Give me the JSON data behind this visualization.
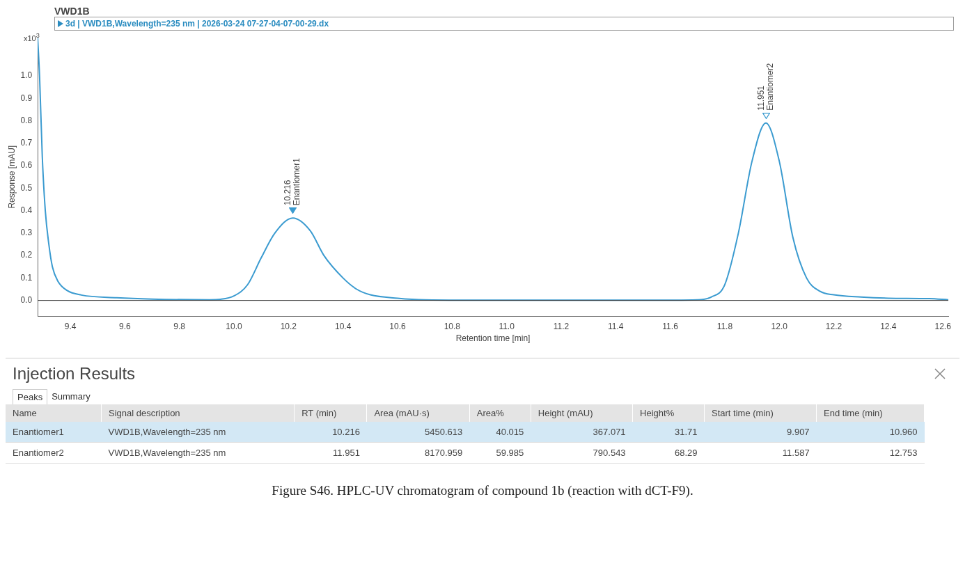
{
  "chart_data": {
    "type": "line",
    "title": "VWD1B",
    "subtitle": "3d | VWD1B,Wavelength=235 nm | 2026-03-24 07-27-04-07-00-29.dx",
    "xlabel": "Retention time [min]",
    "ylabel": "Response [mAU]",
    "x": [
      9.28,
      9.287,
      9.297,
      9.308,
      9.321,
      9.334,
      9.355,
      9.387,
      9.44,
      9.57,
      9.7,
      9.91,
      9.95,
      10.0,
      10.05,
      10.1,
      10.15,
      10.216,
      10.28,
      10.33,
      10.4,
      10.45,
      10.5,
      10.6,
      10.7,
      11.0,
      11.5,
      11.7,
      11.75,
      11.8,
      11.85,
      11.9,
      11.951,
      12.0,
      12.05,
      12.1,
      12.15,
      12.2,
      12.3,
      12.4,
      12.55,
      12.62
    ],
    "series": [
      {
        "color": "#3b9bd0",
        "values": [
          1.17,
          1.0,
          0.64,
          0.4,
          0.25,
          0.15,
          0.084,
          0.045,
          0.024,
          0.012,
          0.006,
          0.003,
          0.005,
          0.02,
          0.07,
          0.19,
          0.3,
          0.367,
          0.31,
          0.2,
          0.1,
          0.05,
          0.025,
          0.01,
          0.003,
          0.001,
          0.001,
          0.003,
          0.015,
          0.07,
          0.3,
          0.62,
          0.79,
          0.62,
          0.28,
          0.1,
          0.04,
          0.025,
          0.015,
          0.01,
          0.008,
          0.003
        ]
      }
    ],
    "xlim": [
      9.28,
      12.62
    ],
    "xticks": [
      {
        "value": 9.4,
        "label": "9.4"
      },
      {
        "value": 9.6,
        "label": "9.6"
      },
      {
        "value": 9.8,
        "label": "9.8"
      },
      {
        "value": 10,
        "label": "10.0"
      },
      {
        "value": 10.2,
        "label": "10.2"
      },
      {
        "value": 10.4,
        "label": "10.4"
      },
      {
        "value": 10.6,
        "label": "10.6"
      },
      {
        "value": 10.8,
        "label": "10.8"
      },
      {
        "value": 11,
        "label": "11.0"
      },
      {
        "value": 11.2,
        "label": "11.2"
      },
      {
        "value": 11.4,
        "label": "11.4"
      },
      {
        "value": 11.6,
        "label": "11.6"
      },
      {
        "value": 11.8,
        "label": "11.8"
      },
      {
        "value": 12,
        "label": "12.0"
      },
      {
        "value": 12.2,
        "label": "12.2"
      },
      {
        "value": 12.4,
        "label": "12.4"
      },
      {
        "value": 12.6,
        "label": "12.6"
      }
    ],
    "ylim": [
      -0.07,
      1.17
    ],
    "yticks": [
      {
        "value": 0,
        "label": "0.0"
      },
      0.1,
      0.2,
      0.3,
      0.4,
      0.5,
      0.6,
      0.7,
      0.8,
      0.9,
      {
        "value": 1,
        "label": "1.0"
      }
    ],
    "ref_lines": [
      {
        "axis": "y",
        "value": 0,
        "color": "#333333"
      }
    ],
    "grid": false,
    "legend": false,
    "marker": "none",
    "line_style": "solid",
    "annotations": [
      {
        "text": "10.216\nEnantiomer1",
        "x": 10.216,
        "y": 0.367
      },
      {
        "text": "11.951\nEnantiomer2",
        "x": 11.951,
        "y": 0.79
      },
      "x10$^{3}$",
      "Injection Results",
      "Peaks\tSummary",
      "Name\tSignal description\tRT (min)\tArea (mAU·s)\tArea%\tHeight (mAU)\tHeight%\tStart time (min)\tEnd time (min)",
      "Enantiomer1\tVWD1B,Wavelength=235 nm\t10.216\t5450.613\t40.015\t367.071\t31.71\t9.907\t10.960",
      "Enantiomer2\tVWD1B,Wavelength=235 nm\t11.951\t8170.959\t59.985\t790.543\t68.29\t11.587\t12.753",
      "Figure S46. HPLC-UV chromatogram of compound 1b (reaction with dCT-F9)."
    ]
  }
}
